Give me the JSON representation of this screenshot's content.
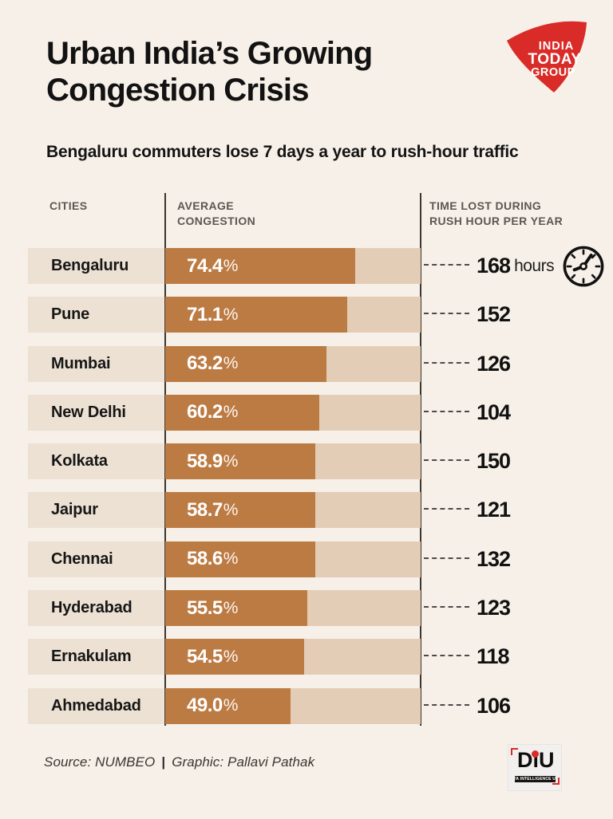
{
  "header": {
    "title_line1": "Urban India’s Growing",
    "title_line2": "Congestion Crisis",
    "subtitle": "Bengaluru commuters lose 7 days a year to rush-hour traffic",
    "logo": {
      "lines": [
        "INDIA",
        "TODAY",
        "GROUP"
      ]
    }
  },
  "table": {
    "col_cities": "CITIES",
    "col_congestion": "AVERAGE\nCONGESTION",
    "col_time": "TIME LOST DURING\nRUSH HOUR PER YEAR"
  },
  "rows": [
    {
      "city": "Bengaluru",
      "pct": 74.4,
      "pct_label": "74.4",
      "pct_sign": "%",
      "hours": "168",
      "unit": "hours",
      "show_clock": true
    },
    {
      "city": "Pune",
      "pct": 71.1,
      "pct_label": "71.1",
      "pct_sign": "%",
      "hours": "152",
      "unit": "",
      "show_clock": false
    },
    {
      "city": "Mumbai",
      "pct": 63.2,
      "pct_label": "63.2",
      "pct_sign": "%",
      "hours": "126",
      "unit": "",
      "show_clock": false
    },
    {
      "city": "New Delhi",
      "pct": 60.2,
      "pct_label": "60.2",
      "pct_sign": "%",
      "hours": "104",
      "unit": "",
      "show_clock": false
    },
    {
      "city": "Kolkata",
      "pct": 58.9,
      "pct_label": "58.9",
      "pct_sign": "%",
      "hours": "150",
      "unit": "",
      "show_clock": false
    },
    {
      "city": "Jaipur",
      "pct": 58.7,
      "pct_label": "58.7",
      "pct_sign": "%",
      "hours": "121",
      "unit": "",
      "show_clock": false
    },
    {
      "city": "Chennai",
      "pct": 58.6,
      "pct_label": "58.6",
      "pct_sign": "%",
      "hours": "132",
      "unit": "",
      "show_clock": false
    },
    {
      "city": "Hyderabad",
      "pct": 55.5,
      "pct_label": "55.5",
      "pct_sign": "%",
      "hours": "123",
      "unit": "",
      "show_clock": false
    },
    {
      "city": "Ernakulam",
      "pct": 54.5,
      "pct_label": "54.5",
      "pct_sign": "%",
      "hours": "118",
      "unit": "",
      "show_clock": false
    },
    {
      "city": "Ahmedabad",
      "pct": 49.0,
      "pct_label": "49.0",
      "pct_sign": "%",
      "hours": "106",
      "unit": "",
      "show_clock": false
    }
  ],
  "chart_data": {
    "type": "bar",
    "orientation": "horizontal",
    "title": "Urban India's Growing Congestion Crisis",
    "subtitle": "Bengaluru commuters lose 7 days a year to rush-hour traffic",
    "categories": [
      "Bengaluru",
      "Pune",
      "Mumbai",
      "New Delhi",
      "Kolkata",
      "Jaipur",
      "Chennai",
      "Hyderabad",
      "Ernakulam",
      "Ahmedabad"
    ],
    "series": [
      {
        "name": "Average congestion (%)",
        "values": [
          74.4,
          71.1,
          63.2,
          60.2,
          58.9,
          58.7,
          58.6,
          55.5,
          54.5,
          49.0
        ]
      },
      {
        "name": "Time lost during rush hour per year (hours)",
        "values": [
          168,
          152,
          126,
          104,
          150,
          121,
          132,
          123,
          118,
          106
        ]
      }
    ],
    "xlim": [
      0,
      100
    ],
    "grid": false,
    "legend": false,
    "source": "NUMBEO"
  },
  "footer": {
    "source": "Source: NUMBEO",
    "separator": "|",
    "credit": "Graphic: Pallavi Pathak",
    "diu_name": "DiU",
    "diu_tagline": "DATA INTELLIGENCE UNIT"
  },
  "colors": {
    "background": "#f7f0e8",
    "bar_fill": "#bd7b44",
    "bar_track": "#e3cdb6",
    "label_strip": "#ece1d3",
    "logo_red": "#d92b27",
    "title_text": "#121212",
    "header_gray": "#5c5752"
  }
}
